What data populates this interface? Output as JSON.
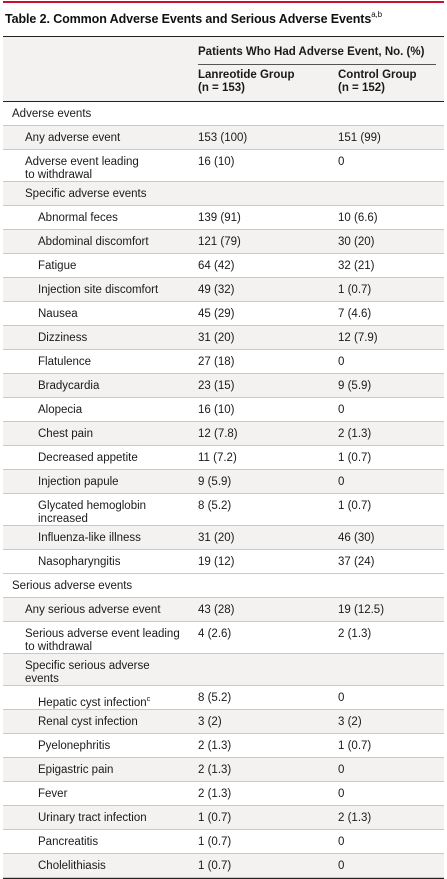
{
  "title": "Table 2. Common Adverse Events and Serious Adverse Events",
  "title_sup": "a,b",
  "header": {
    "span_label": "Patients Who Had Adverse Event, No. (%)",
    "col1_line1": "Lanreotide Group",
    "col1_line2": "(n = 153)",
    "col2_line1": "Control Group",
    "col2_line2": "(n = 152)"
  },
  "rows": [
    {
      "label": "Adverse events",
      "v1": "",
      "v2": "",
      "level": 0,
      "lines": 1
    },
    {
      "label": "Any adverse event",
      "v1": "153 (100)",
      "v2": "151 (99)",
      "level": 1,
      "lines": 1
    },
    {
      "label": "Adverse event leading\nto withdrawal",
      "v1": "16 (10)",
      "v2": "0",
      "level": 1,
      "lines": 2
    },
    {
      "label": "Specific adverse events",
      "v1": "",
      "v2": "",
      "level": 1,
      "lines": 1
    },
    {
      "label": "Abnormal feces",
      "v1": "139 (91)",
      "v2": "10 (6.6)",
      "level": 2,
      "lines": 1
    },
    {
      "label": "Abdominal discomfort",
      "v1": "121 (79)",
      "v2": "30 (20)",
      "level": 2,
      "lines": 1
    },
    {
      "label": "Fatigue",
      "v1": "64 (42)",
      "v2": "32 (21)",
      "level": 2,
      "lines": 1
    },
    {
      "label": "Injection site discomfort",
      "v1": "49 (32)",
      "v2": "1 (0.7)",
      "level": 2,
      "lines": 1
    },
    {
      "label": "Nausea",
      "v1": "45 (29)",
      "v2": "7 (4.6)",
      "level": 2,
      "lines": 1
    },
    {
      "label": "Dizziness",
      "v1": "31 (20)",
      "v2": "12 (7.9)",
      "level": 2,
      "lines": 1
    },
    {
      "label": "Flatulence",
      "v1": "27 (18)",
      "v2": "0",
      "level": 2,
      "lines": 1
    },
    {
      "label": "Bradycardia",
      "v1": "23 (15)",
      "v2": "9 (5.9)",
      "level": 2,
      "lines": 1
    },
    {
      "label": "Alopecia",
      "v1": "16 (10)",
      "v2": "0",
      "level": 2,
      "lines": 1
    },
    {
      "label": "Chest pain",
      "v1": "12 (7.8)",
      "v2": "2 (1.3)",
      "level": 2,
      "lines": 1
    },
    {
      "label": "Decreased appetite",
      "v1": "11 (7.2)",
      "v2": "1 (0.7)",
      "level": 2,
      "lines": 1
    },
    {
      "label": "Injection papule",
      "v1": "9 (5.9)",
      "v2": "0",
      "level": 2,
      "lines": 1
    },
    {
      "label": "Glycated hemoglobin\nincreased",
      "v1": "8 (5.2)",
      "v2": "1 (0.7)",
      "level": 2,
      "lines": 2
    },
    {
      "label": "Influenza-like illness",
      "v1": "31 (20)",
      "v2": "46 (30)",
      "level": 2,
      "lines": 1
    },
    {
      "label": "Nasopharyngitis",
      "v1": "19 (12)",
      "v2": "37 (24)",
      "level": 2,
      "lines": 1
    },
    {
      "label": "Serious adverse events",
      "v1": "",
      "v2": "",
      "level": 0,
      "lines": 1
    },
    {
      "label": "Any serious adverse event",
      "v1": "43 (28)",
      "v2": "19 (12.5)",
      "level": 1,
      "lines": 1
    },
    {
      "label": "Serious adverse event leading\nto withdrawal",
      "v1": "4 (2.6)",
      "v2": "2 (1.3)",
      "level": 1,
      "lines": 2
    },
    {
      "label": "Specific serious adverse\nevents",
      "v1": "",
      "v2": "",
      "level": 1,
      "lines": 2
    },
    {
      "label": "Hepatic cyst infection",
      "sup": "c",
      "v1": "8 (5.2)",
      "v2": "0",
      "level": 2,
      "lines": 1
    },
    {
      "label": "Renal cyst infection",
      "v1": "3 (2)",
      "v2": "3 (2)",
      "level": 2,
      "lines": 1
    },
    {
      "label": "Pyelonephritis",
      "v1": "2 (1.3)",
      "v2": "1 (0.7)",
      "level": 2,
      "lines": 1
    },
    {
      "label": "Epigastric pain",
      "v1": "2 (1.3)",
      "v2": "0",
      "level": 2,
      "lines": 1
    },
    {
      "label": "Fever",
      "v1": "2 (1.3)",
      "v2": "0",
      "level": 2,
      "lines": 1
    },
    {
      "label": "Urinary tract infection",
      "v1": "1 (0.7)",
      "v2": "2 (1.3)",
      "level": 2,
      "lines": 1
    },
    {
      "label": "Pancreatitis",
      "v1": "1 (0.7)",
      "v2": "0",
      "level": 2,
      "lines": 1
    },
    {
      "label": "Cholelithiasis",
      "v1": "1 (0.7)",
      "v2": "0",
      "level": 2,
      "lines": 1
    }
  ]
}
